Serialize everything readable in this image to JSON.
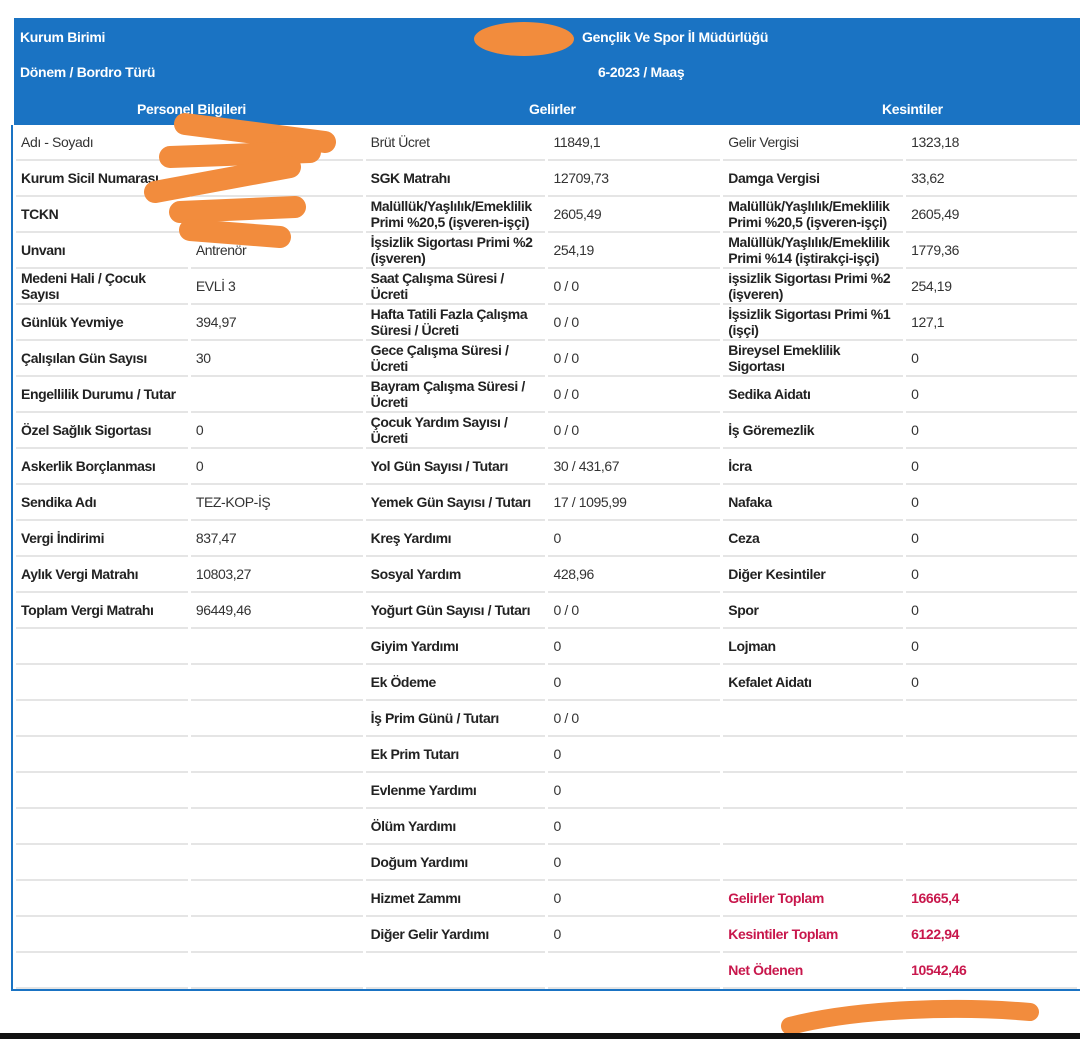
{
  "header": {
    "kurum_label": "Kurum Birimi",
    "kurum_value": "Gençlik Ve Spor İl Müdürlüğü",
    "donem_label": "Dönem / Bordro Türü",
    "donem_value": "6-2023 / Maaş"
  },
  "sections": {
    "personel": "Personel Bilgileri",
    "gelirler": "Gelirler",
    "kesintiler": "Kesintiler"
  },
  "rows": [
    {
      "pk": "Adı - Soyadı",
      "pv": "",
      "gk": "Brüt Ücret",
      "gv": "11849,1",
      "kk": "Gelir Vergisi",
      "kv": "1323,18"
    },
    {
      "pk": "Kurum Sicil Numarası",
      "pv": "",
      "gk": "SGK Matrahı",
      "gv": "12709,73",
      "kk": "Damga Vergisi",
      "kv": "33,62"
    },
    {
      "pk": "TCKN",
      "pv": "",
      "gk": "Malüllük/Yaşlılık/Emeklilik Primi %20,5 (işveren-işçi)",
      "gv": "2605,49",
      "kk": "Malüllük/Yaşlılık/Emeklilik Primi %20,5 (işveren-işçi)",
      "kv": "2605,49"
    },
    {
      "pk": "Unvanı",
      "pv": "Antrenör",
      "gk": "İşsizlik Sigortası Primi %2 (işveren)",
      "gv": "254,19",
      "kk": "Malüllük/Yaşlılık/Emeklilik Primi %14 (iştirakçi-işçi)",
      "kv": "1779,36"
    },
    {
      "pk": "Medeni Hali / Çocuk Sayısı",
      "pv": "EVLİ 3",
      "gk": "Saat Çalışma Süresi / Ücreti",
      "gv": "0 / 0",
      "kk": "işsizlik Sigortası Primi %2 (işveren)",
      "kv": "254,19"
    },
    {
      "pk": "Günlük Yevmiye",
      "pv": "394,97",
      "gk": "Hafta Tatili Fazla Çalışma Süresi / Ücreti",
      "gv": "0 / 0",
      "kk": "İşsizlik Sigortası Primi %1 (işçi)",
      "kv": "127,1"
    },
    {
      "pk": "Çalışılan Gün Sayısı",
      "pv": "30",
      "gk": "Gece Çalışma Süresi / Ücreti",
      "gv": "0 / 0",
      "kk": "Bireysel Emeklilik Sigortası",
      "kv": "0"
    },
    {
      "pk": "Engellilik Durumu / Tutar",
      "pv": "",
      "gk": "Bayram Çalışma Süresi / Ücreti",
      "gv": "0 / 0",
      "kk": "Sedika Aidatı",
      "kv": "0"
    },
    {
      "pk": "Özel Sağlık Sigortası",
      "pv": "0",
      "gk": "Çocuk Yardım Sayısı / Ücreti",
      "gv": "0 / 0",
      "kk": "İş Göremezlik",
      "kv": "0"
    },
    {
      "pk": "Askerlik Borçlanması",
      "pv": "0",
      "gk": "Yol Gün Sayısı / Tutarı",
      "gv": "30 / 431,67",
      "kk": "İcra",
      "kv": "0"
    },
    {
      "pk": "Sendika Adı",
      "pv": "TEZ-KOP-İŞ",
      "gk": "Yemek Gün Sayısı / Tutarı",
      "gv": "17 / 1095,99",
      "kk": "Nafaka",
      "kv": "0"
    },
    {
      "pk": "Vergi İndirimi",
      "pv": "837,47",
      "gk": "Kreş Yardımı",
      "gv": "0",
      "kk": "Ceza",
      "kv": "0"
    },
    {
      "pk": "Aylık Vergi Matrahı",
      "pv": "10803,27",
      "gk": "Sosyal Yardım",
      "gv": "428,96",
      "kk": "Diğer Kesintiler",
      "kv": "0"
    },
    {
      "pk": "Toplam Vergi Matrahı",
      "pv": "96449,46",
      "gk": "Yoğurt Gün Sayısı / Tutarı",
      "gv": "0 / 0",
      "kk": "Spor",
      "kv": "0"
    },
    {
      "pk": "",
      "pv": "",
      "gk": "Giyim Yardımı",
      "gv": "0",
      "kk": "Lojman",
      "kv": "0"
    },
    {
      "pk": "",
      "pv": "",
      "gk": "Ek Ödeme",
      "gv": "0",
      "kk": "Kefalet Aidatı",
      "kv": "0"
    },
    {
      "pk": "",
      "pv": "",
      "gk": "İş Prim Günü / Tutarı",
      "gv": "0 / 0",
      "kk": "",
      "kv": ""
    },
    {
      "pk": "",
      "pv": "",
      "gk": "Ek Prim Tutarı",
      "gv": "0",
      "kk": "",
      "kv": ""
    },
    {
      "pk": "",
      "pv": "",
      "gk": "Evlenme Yardımı",
      "gv": "0",
      "kk": "",
      "kv": ""
    },
    {
      "pk": "",
      "pv": "",
      "gk": "Ölüm Yardımı",
      "gv": "0",
      "kk": "",
      "kv": ""
    },
    {
      "pk": "",
      "pv": "",
      "gk": "Doğum Yardımı",
      "gv": "0",
      "kk": "",
      "kv": ""
    },
    {
      "pk": "",
      "pv": "",
      "gk": "Hizmet Zammı",
      "gv": "0",
      "kk": "Gelirler Toplam",
      "kv": "16665,4"
    },
    {
      "pk": "",
      "pv": "",
      "gk": "Diğer Gelir Yardımı",
      "gv": "0",
      "kk": "Kesintiler Toplam",
      "kv": "6122,94"
    },
    {
      "pk": "",
      "pv": "",
      "gk": "",
      "gv": "",
      "kk": "Net Ödenen",
      "kv": "10542,46"
    }
  ],
  "colors": {
    "header_blue": "#1a73c3",
    "total_red": "#c8174c",
    "redaction_orange": "#f28c3d"
  }
}
